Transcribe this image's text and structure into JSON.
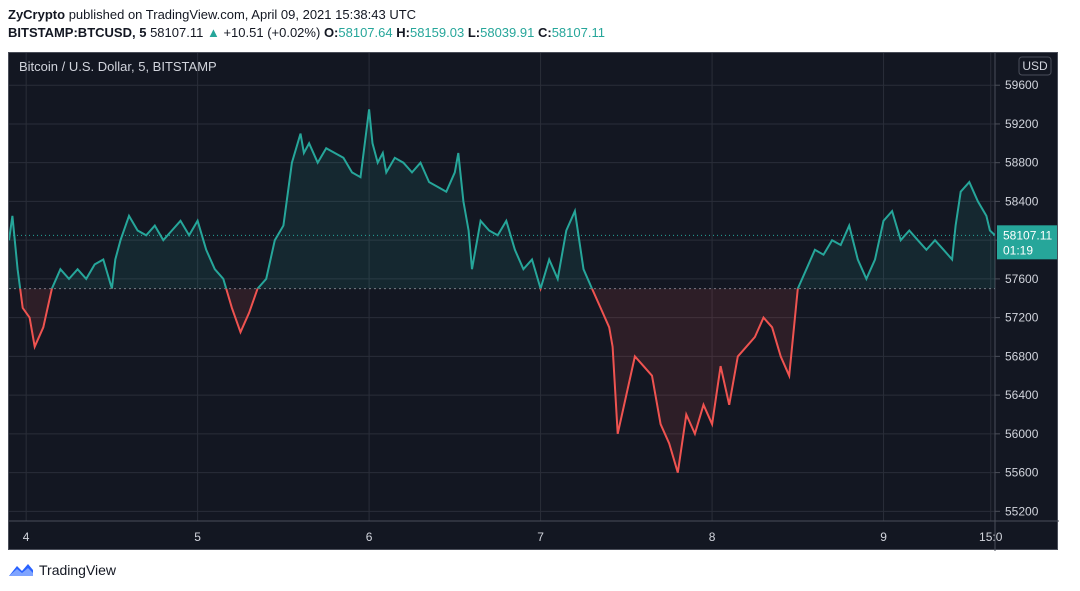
{
  "header": {
    "publisher": "ZyCrypto",
    "published_text": "published on TradingView.com, April 09, 2021 15:38:43 UTC",
    "symbol": "BITSTAMP:BTCUSD, 5",
    "last": "58107.11",
    "arrow": "▲",
    "change": "+10.51 (+0.02%)",
    "o_label": "O:",
    "o_value": "58107.64",
    "h_label": "H:",
    "h_value": "58159.03",
    "l_label": "L:",
    "l_value": "58039.91",
    "c_label": "C:",
    "c_value": "58107.11"
  },
  "chart_data": {
    "type": "area",
    "title": "Bitcoin / U.S. Dollar, 5, BITSTAMP",
    "currency_label": "USD",
    "baseline": 57500,
    "last_price_label": "58107.11",
    "countdown_label": "01:19",
    "ylim": [
      55100,
      59850
    ],
    "xlim": [
      3.9,
      9.65
    ],
    "y_ticks": [
      {
        "value": 59600,
        "label": "59600"
      },
      {
        "value": 59200,
        "label": "59200"
      },
      {
        "value": 58800,
        "label": "58800"
      },
      {
        "value": 58400,
        "label": "58400"
      },
      {
        "value": 58000,
        "label": "58000"
      },
      {
        "value": 57600,
        "label": "57600"
      },
      {
        "value": 57200,
        "label": "57200"
      },
      {
        "value": 56800,
        "label": "56800"
      },
      {
        "value": 56400,
        "label": "56400"
      },
      {
        "value": 56000,
        "label": "56000"
      },
      {
        "value": 55600,
        "label": "55600"
      },
      {
        "value": 55200,
        "label": "55200"
      }
    ],
    "x_ticks": [
      {
        "value": 4,
        "label": "4"
      },
      {
        "value": 5,
        "label": "5"
      },
      {
        "value": 6,
        "label": "6"
      },
      {
        "value": 7,
        "label": "7"
      },
      {
        "value": 8,
        "label": "8"
      },
      {
        "value": 9,
        "label": "9"
      },
      {
        "value": 9.625,
        "label": "15:0"
      }
    ],
    "series": [
      {
        "x": [
          3.9,
          3.92,
          3.95,
          3.98,
          4.02,
          4.05,
          4.1,
          4.15,
          4.2,
          4.25,
          4.3,
          4.35,
          4.4,
          4.45,
          4.5,
          4.52,
          4.55,
          4.6,
          4.65,
          4.7,
          4.75,
          4.8,
          4.85,
          4.9,
          4.95,
          5.0,
          5.05,
          5.1,
          5.15,
          5.2,
          5.25,
          5.3,
          5.35,
          5.4,
          5.45,
          5.5,
          5.55,
          5.6,
          5.62,
          5.65,
          5.7,
          5.75,
          5.8,
          5.85,
          5.9,
          5.95,
          6.0,
          6.02,
          6.05,
          6.08,
          6.1,
          6.15,
          6.2,
          6.25,
          6.3,
          6.35,
          6.4,
          6.45,
          6.5,
          6.52,
          6.55,
          6.58,
          6.6,
          6.65,
          6.7,
          6.75,
          6.8,
          6.85,
          6.9,
          6.95,
          7.0,
          7.05,
          7.1,
          7.15,
          7.2,
          7.25,
          7.3,
          7.35,
          7.4,
          7.42,
          7.45,
          7.5,
          7.55,
          7.6,
          7.65,
          7.7,
          7.75,
          7.8,
          7.85,
          7.9,
          7.95,
          8.0,
          8.05,
          8.1,
          8.15,
          8.2,
          8.25,
          8.3,
          8.35,
          8.4,
          8.45,
          8.5,
          8.55,
          8.6,
          8.65,
          8.7,
          8.75,
          8.8,
          8.85,
          8.9,
          8.95,
          9.0,
          9.05,
          9.1,
          9.15,
          9.2,
          9.25,
          9.3,
          9.35,
          9.4,
          9.42,
          9.45,
          9.5,
          9.55,
          9.6,
          9.62,
          9.65
        ],
        "y": [
          58000,
          58250,
          57700,
          57300,
          57200,
          56900,
          57100,
          57500,
          57700,
          57600,
          57700,
          57600,
          57750,
          57800,
          57500,
          57800,
          58000,
          58250,
          58100,
          58050,
          58150,
          58000,
          58100,
          58200,
          58050,
          58200,
          57900,
          57700,
          57600,
          57300,
          57050,
          57250,
          57500,
          57600,
          58000,
          58150,
          58800,
          59100,
          58900,
          59000,
          58800,
          58950,
          58900,
          58850,
          58700,
          58650,
          59350,
          59000,
          58800,
          58900,
          58700,
          58850,
          58800,
          58700,
          58800,
          58600,
          58550,
          58500,
          58700,
          58900,
          58400,
          58100,
          57700,
          58200,
          58100,
          58050,
          58200,
          57900,
          57700,
          57800,
          57500,
          57800,
          57600,
          58100,
          58300,
          57700,
          57500,
          57300,
          57100,
          56900,
          56000,
          56400,
          56800,
          56700,
          56600,
          56100,
          55900,
          55600,
          56200,
          56000,
          56300,
          56100,
          56700,
          56300,
          56800,
          56900,
          57000,
          57200,
          57100,
          56800,
          56600,
          57500,
          57700,
          57900,
          57850,
          58000,
          57950,
          58150,
          57800,
          57600,
          57800,
          58200,
          58300,
          58000,
          58100,
          58000,
          57900,
          58000,
          57900,
          57800,
          58150,
          58500,
          58600,
          58400,
          58250,
          58100,
          58050
        ]
      }
    ]
  },
  "footer": {
    "brand": "TradingView",
    "logo_icon": "tradingview-logo-icon"
  },
  "colors": {
    "up": "#26a69a",
    "down": "#ef5350",
    "background": "#131722",
    "grid": "#2a2e39",
    "axis_text": "#d1d4dc",
    "label_bg": "#26a69a"
  }
}
